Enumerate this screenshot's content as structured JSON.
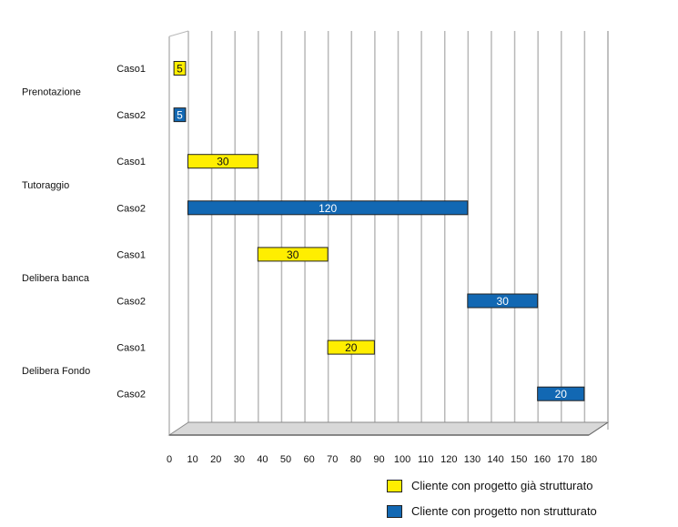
{
  "chart_data": {
    "type": "bar",
    "orientation": "horizontal-gantt",
    "groups": [
      {
        "name": "Prenotazione",
        "rows": [
          {
            "label": "Caso1",
            "series": 0,
            "start": 2,
            "value": 5,
            "text": "5"
          },
          {
            "label": "Caso2",
            "series": 1,
            "start": 2,
            "value": 5,
            "text": "5"
          }
        ]
      },
      {
        "name": "Tutoraggio",
        "rows": [
          {
            "label": "Caso1",
            "series": 0,
            "start": 8,
            "value": 30,
            "text": "30"
          },
          {
            "label": "Caso2",
            "series": 1,
            "start": 8,
            "value": 120,
            "text": "120"
          }
        ]
      },
      {
        "name": "Delibera banca",
        "rows": [
          {
            "label": "Caso1",
            "series": 0,
            "start": 38,
            "value": 30,
            "text": "30"
          },
          {
            "label": "Caso2",
            "series": 1,
            "start": 128,
            "value": 30,
            "text": "30"
          }
        ]
      },
      {
        "name": "Delibera Fondo",
        "rows": [
          {
            "label": "Caso1",
            "series": 0,
            "start": 68,
            "value": 20,
            "text": "20"
          },
          {
            "label": "Caso2",
            "series": 1,
            "start": 158,
            "value": 20,
            "text": "20"
          }
        ]
      }
    ],
    "x_ticks": [
      0,
      10,
      20,
      30,
      40,
      50,
      60,
      70,
      80,
      90,
      100,
      110,
      120,
      130,
      140,
      150,
      160,
      170,
      180
    ],
    "xlim": [
      0,
      180
    ],
    "series": [
      {
        "name": "Cliente con progetto già strutturato",
        "color": "#ffee00",
        "label_color": "#111111"
      },
      {
        "name": "Cliente con progetto non strutturato",
        "color": "#1268b3",
        "label_color": "#ffffff"
      }
    ],
    "grid": true,
    "legend": "bottom-right"
  }
}
